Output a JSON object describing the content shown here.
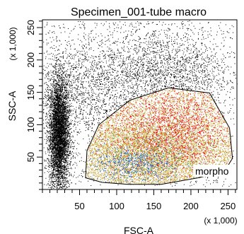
{
  "chart_data": {
    "type": "scatter",
    "title": "Specimen_001-tube macro",
    "xlabel": "FSC-A",
    "ylabel": "SSC-A",
    "x_multiplier": "(x 1,000)",
    "y_multiplier": "(x 1,000)",
    "xlim": [
      0,
      262
    ],
    "ylim": [
      0,
      262
    ],
    "x_ticks": [
      50,
      100,
      150,
      200,
      250
    ],
    "y_ticks": [
      50,
      100,
      150,
      200,
      250
    ],
    "x_tick_labels": [
      "50",
      "100",
      "150",
      "200",
      "250"
    ],
    "y_tick_labels": [
      "50",
      "100",
      "150",
      "200",
      "250"
    ],
    "grid": false,
    "gate": {
      "name": "morpho",
      "vertices": [
        [
          58,
          18
        ],
        [
          60,
          60
        ],
        [
          76,
          100
        ],
        [
          118,
          138
        ],
        [
          170,
          157
        ],
        [
          225,
          149
        ],
        [
          252,
          95
        ],
        [
          256,
          48
        ],
        [
          245,
          28
        ],
        [
          210,
          18
        ],
        [
          160,
          8
        ],
        [
          115,
          8
        ],
        [
          80,
          11
        ]
      ]
    },
    "series": [
      {
        "color": "#000000",
        "clusters": [
          {
            "x_center": 22,
            "y_center": 85,
            "x_spread": 7,
            "y_spread": 55
          },
          {
            "x_center": 60,
            "y_center": 160,
            "x_spread": 70,
            "y_spread": 50
          },
          {
            "x_center": 170,
            "y_center": 180,
            "x_spread": 60,
            "y_spread": 45
          }
        ]
      },
      {
        "color": "#c8a030",
        "x_center": 140,
        "y_center": 55,
        "x_spread": 55,
        "y_spread": 35
      },
      {
        "color": "#ee1010",
        "x_center": 175,
        "y_center": 95,
        "x_spread": 45,
        "y_spread": 35
      },
      {
        "color": "#1e64c8",
        "x_center": 125,
        "y_center": 40,
        "x_spread": 30,
        "y_spread": 15
      },
      {
        "color": "#38a848",
        "x_center": 150,
        "y_center": 60,
        "x_spread": 45,
        "y_spread": 30
      }
    ]
  }
}
